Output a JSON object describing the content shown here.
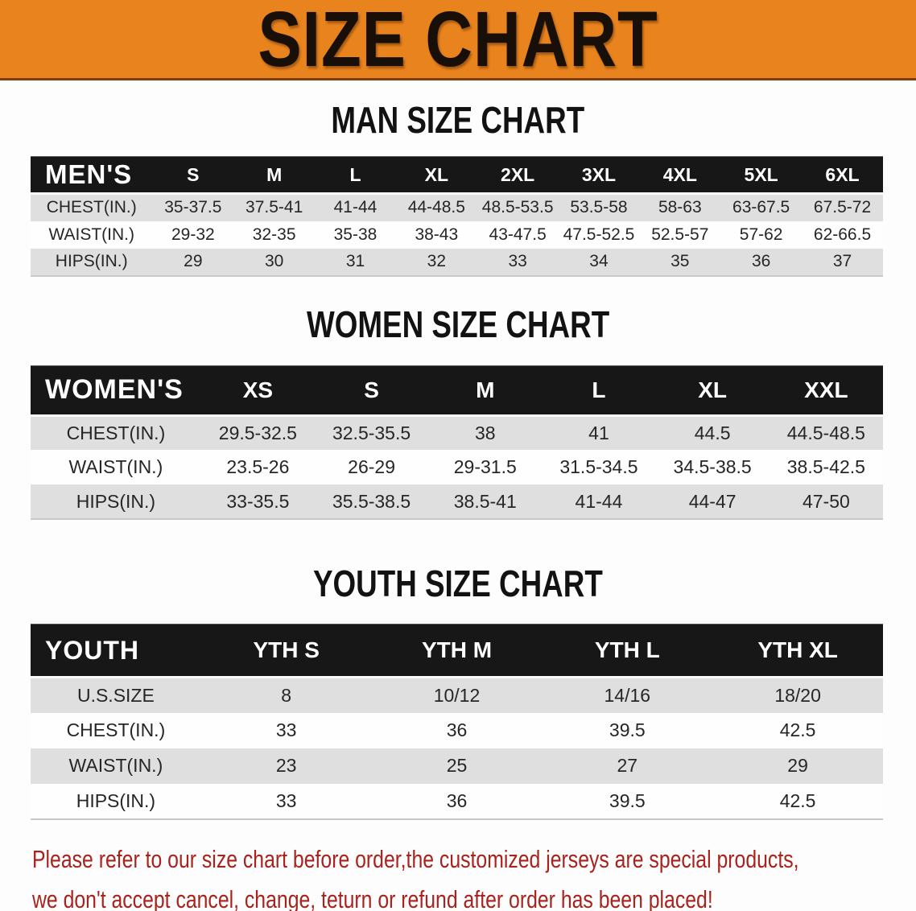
{
  "banner": {
    "title": "SIZE CHART",
    "bg_color": "#E8831E",
    "title_color": "#181008"
  },
  "sections": [
    {
      "heading": "MAN SIZE CHART",
      "table": {
        "header_label": "MEN'S",
        "columns": [
          "S",
          "M",
          "L",
          "XL",
          "2XL",
          "3XL",
          "4XL",
          "5XL",
          "6XL"
        ],
        "rows": [
          {
            "label": "CHEST(IN.)",
            "values": [
              "35-37.5",
              "37.5-41",
              "41-44",
              "44-48.5",
              "48.5-53.5",
              "53.5-58",
              "58-63",
              "63-67.5",
              "67.5-72"
            ]
          },
          {
            "label": "WAIST(IN.)",
            "values": [
              "29-32",
              "32-35",
              "35-38",
              "38-43",
              "43-47.5",
              "47.5-52.5",
              "52.5-57",
              "57-62",
              "62-66.5"
            ]
          },
          {
            "label": "HIPS(IN.)",
            "values": [
              "29",
              "30",
              "31",
              "32",
              "33",
              "34",
              "35",
              "36",
              "37"
            ]
          }
        ]
      }
    },
    {
      "heading": "WOMEN SIZE CHART",
      "table": {
        "header_label": "WOMEN'S",
        "columns": [
          "XS",
          "S",
          "M",
          "L",
          "XL",
          "XXL"
        ],
        "rows": [
          {
            "label": "CHEST(IN.)",
            "values": [
              "29.5-32.5",
              "32.5-35.5",
              "38",
              "41",
              "44.5",
              "44.5-48.5"
            ]
          },
          {
            "label": "WAIST(IN.)",
            "values": [
              "23.5-26",
              "26-29",
              "29-31.5",
              "31.5-34.5",
              "34.5-38.5",
              "38.5-42.5"
            ]
          },
          {
            "label": "HIPS(IN.)",
            "values": [
              "33-35.5",
              "35.5-38.5",
              "38.5-41",
              "41-44",
              "44-47",
              "47-50"
            ]
          }
        ]
      }
    },
    {
      "heading": "YOUTH SIZE CHART",
      "table": {
        "header_label": "YOUTH",
        "columns": [
          "YTH S",
          "YTH M",
          "YTH L",
          "YTH XL"
        ],
        "rows": [
          {
            "label": "U.S.SIZE",
            "values": [
              "8",
              "10/12",
              "14/16",
              "18/20"
            ]
          },
          {
            "label": "CHEST(IN.)",
            "values": [
              "33",
              "36",
              "39.5",
              "42.5"
            ]
          },
          {
            "label": "WAIST(IN.)",
            "values": [
              "23",
              "25",
              "27",
              "29"
            ]
          },
          {
            "label": "HIPS(IN.)",
            "values": [
              "33",
              "36",
              "39.5",
              "42.5"
            ]
          }
        ]
      }
    }
  ],
  "disclaimer": {
    "line1": "Please refer to our size chart before order,the customized jerseys are special products,",
    "line2": "we don't accept cancel, change, teturn or refund after order has been placed!",
    "color": "#a8231d"
  }
}
